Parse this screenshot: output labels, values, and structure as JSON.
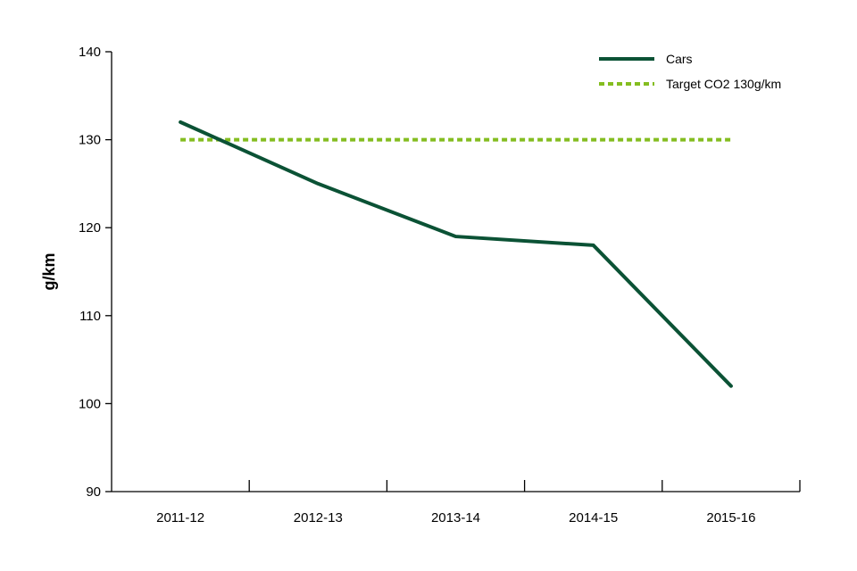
{
  "chart_data": {
    "type": "line",
    "categories": [
      "2011-12",
      "2012-13",
      "2013-14",
      "2014-15",
      "2015-16"
    ],
    "series": [
      {
        "name": "Cars",
        "values": [
          132,
          125,
          119,
          118,
          102
        ],
        "color": "#0b5235",
        "style": "solid"
      },
      {
        "name": "Target CO2 130g/km",
        "values": [
          130,
          130,
          130,
          130,
          130
        ],
        "color": "#84bd20",
        "style": "dotted"
      }
    ],
    "title": "",
    "xlabel": "",
    "ylabel": "g/km",
    "ylim": [
      90,
      140
    ],
    "yticks": [
      90,
      100,
      110,
      120,
      130,
      140
    ],
    "grid": false,
    "legend_position": "top-right"
  }
}
